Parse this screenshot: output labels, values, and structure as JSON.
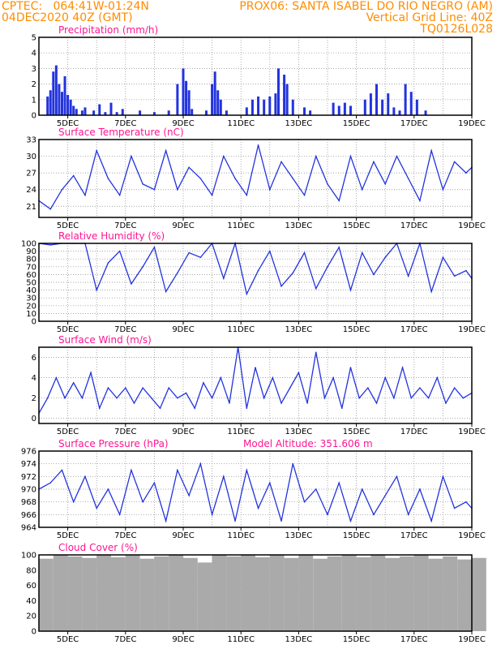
{
  "header": {
    "line1_left": "CPTEC:   064:41W-01:24N",
    "line1_right": "PROX06: SANTA ISABEL DO RIO NEGRO (AM)",
    "line2_left": "04DEC2020 40Z (GMT)",
    "line2_right": "Vertical Grid Line: 40Z",
    "line3_right": "TQ0126L028"
  },
  "model_altitude": "Model Altitude: 351.606 m",
  "x_ticks": [
    "5DEC",
    "7DEC",
    "9DEC",
    "11DEC",
    "13DEC",
    "15DEC",
    "17DEC",
    "19DEC"
  ],
  "colors": {
    "line": "#2233dd",
    "bar": "#2233dd",
    "title": "#ff1493",
    "header": "#ff8c00",
    "cloud": "#aaaaaa",
    "grid": "#888888"
  },
  "chart_data": [
    {
      "type": "bar",
      "title": "Precipitation (mm/h)",
      "ylim": [
        0,
        5
      ],
      "yticks": [
        0,
        1,
        2,
        3,
        4,
        5
      ],
      "x": [
        4.3,
        4.4,
        4.5,
        4.6,
        4.7,
        4.8,
        4.9,
        5.0,
        5.1,
        5.2,
        5.3,
        5.5,
        5.6,
        5.9,
        6.1,
        6.3,
        6.5,
        6.7,
        6.9,
        7.5,
        8.0,
        8.5,
        8.8,
        9.0,
        9.1,
        9.2,
        9.3,
        9.8,
        10.0,
        10.1,
        10.2,
        10.3,
        10.5,
        11.2,
        11.4,
        11.6,
        11.8,
        12.0,
        12.2,
        12.3,
        12.5,
        12.6,
        12.8,
        13.2,
        13.4,
        14.2,
        14.4,
        14.6,
        14.8,
        15.3,
        15.5,
        15.7,
        15.9,
        16.1,
        16.3,
        16.5,
        16.7,
        16.9,
        17.1,
        17.4
      ],
      "values": [
        1.2,
        1.6,
        2.8,
        3.2,
        2.0,
        1.5,
        2.5,
        1.3,
        1.0,
        0.6,
        0.4,
        0.3,
        0.5,
        0.3,
        0.7,
        0.2,
        0.8,
        0.2,
        0.4,
        0.3,
        0.2,
        0.3,
        2.0,
        3.0,
        2.2,
        1.6,
        0.4,
        0.3,
        2.0,
        2.8,
        1.6,
        1.0,
        0.3,
        0.5,
        1.0,
        1.2,
        1.0,
        1.2,
        1.4,
        3.0,
        2.6,
        2.0,
        1.0,
        0.5,
        0.3,
        0.8,
        0.6,
        0.8,
        0.6,
        1.0,
        1.4,
        2.0,
        1.0,
        1.4,
        0.5,
        0.3,
        2.0,
        1.5,
        1.0,
        0.3
      ]
    },
    {
      "type": "line",
      "title": "Surface Temperature (nC)",
      "ylim": [
        19,
        33
      ],
      "yticks": [
        21,
        24,
        27,
        30,
        33
      ],
      "x": [
        4.0,
        4.4,
        4.8,
        5.2,
        5.6,
        6.0,
        6.4,
        6.8,
        7.2,
        7.6,
        8.0,
        8.4,
        8.8,
        9.2,
        9.6,
        10.0,
        10.4,
        10.8,
        11.2,
        11.6,
        12.0,
        12.4,
        12.8,
        13.2,
        13.6,
        14.0,
        14.4,
        14.8,
        15.2,
        15.6,
        16.0,
        16.4,
        16.8,
        17.2,
        17.6,
        18.0,
        18.4,
        18.8,
        19.0
      ],
      "values": [
        22,
        20.5,
        24,
        26.5,
        23,
        31,
        26,
        23,
        30,
        25,
        24,
        31,
        24,
        28,
        26,
        23,
        30,
        26,
        23,
        32,
        24,
        29,
        26,
        23,
        30,
        25,
        22,
        30,
        24,
        29,
        25,
        30,
        26,
        22,
        31,
        24,
        29,
        27,
        28
      ]
    },
    {
      "type": "line",
      "title": "Relative Humidity (%)",
      "ylim": [
        0,
        100
      ],
      "yticks": [
        0,
        10,
        20,
        30,
        40,
        50,
        60,
        70,
        80,
        90,
        100
      ],
      "x": [
        4.0,
        4.4,
        4.8,
        5.2,
        5.6,
        6.0,
        6.4,
        6.8,
        7.2,
        7.6,
        8.0,
        8.4,
        8.8,
        9.2,
        9.6,
        10.0,
        10.4,
        10.8,
        11.2,
        11.6,
        12.0,
        12.4,
        12.8,
        13.2,
        13.6,
        14.0,
        14.4,
        14.8,
        15.2,
        15.6,
        16.0,
        16.4,
        16.8,
        17.2,
        17.6,
        18.0,
        18.4,
        18.8,
        19.0
      ],
      "values": [
        100,
        98,
        100,
        100,
        100,
        40,
        75,
        90,
        48,
        70,
        95,
        38,
        62,
        88,
        82,
        100,
        55,
        100,
        35,
        65,
        90,
        45,
        62,
        88,
        42,
        70,
        95,
        40,
        88,
        60,
        82,
        100,
        58,
        100,
        38,
        82,
        58,
        65,
        55
      ]
    },
    {
      "type": "line",
      "title": "Surface Wind (m/s)",
      "ylim": [
        -0.5,
        7
      ],
      "yticks": [
        0,
        2,
        4,
        6
      ],
      "x": [
        4.0,
        4.3,
        4.6,
        4.9,
        5.2,
        5.5,
        5.8,
        6.1,
        6.4,
        6.7,
        7.0,
        7.3,
        7.6,
        7.9,
        8.2,
        8.5,
        8.8,
        9.1,
        9.4,
        9.7,
        10.0,
        10.3,
        10.6,
        10.9,
        11.2,
        11.5,
        11.8,
        12.1,
        12.4,
        12.7,
        13.0,
        13.3,
        13.6,
        13.9,
        14.2,
        14.5,
        14.8,
        15.1,
        15.4,
        15.7,
        16.0,
        16.3,
        16.6,
        16.9,
        17.2,
        17.5,
        17.8,
        18.1,
        18.4,
        18.7,
        19.0
      ],
      "values": [
        0.5,
        2,
        4,
        2,
        3.5,
        2,
        4.5,
        1,
        3,
        2,
        3,
        1.5,
        3,
        2,
        1,
        3,
        2,
        2.5,
        1,
        3.5,
        2,
        4,
        1.5,
        7,
        1,
        5,
        2,
        4,
        1.5,
        3,
        4.5,
        1.5,
        6.5,
        2,
        4,
        1,
        5,
        2,
        3,
        1.5,
        4,
        2,
        5,
        2,
        3,
        2,
        4,
        1.5,
        3,
        2,
        2.5
      ]
    },
    {
      "type": "line",
      "title": "Surface Pressure (hPa)",
      "ylim": [
        964,
        976
      ],
      "yticks": [
        964,
        966,
        968,
        970,
        972,
        974,
        976
      ],
      "x": [
        4.0,
        4.4,
        4.8,
        5.2,
        5.6,
        6.0,
        6.4,
        6.8,
        7.2,
        7.6,
        8.0,
        8.4,
        8.8,
        9.2,
        9.6,
        10.0,
        10.4,
        10.8,
        11.2,
        11.6,
        12.0,
        12.4,
        12.8,
        13.2,
        13.6,
        14.0,
        14.4,
        14.8,
        15.2,
        15.6,
        16.0,
        16.4,
        16.8,
        17.2,
        17.6,
        18.0,
        18.4,
        18.8,
        19.0
      ],
      "values": [
        970,
        971,
        973,
        968,
        972,
        967,
        970,
        966,
        973,
        968,
        971,
        965,
        973,
        969,
        974,
        966,
        972,
        965,
        973,
        967,
        971,
        965,
        974,
        968,
        970,
        966,
        971,
        965,
        970,
        966,
        969,
        972,
        966,
        970,
        965,
        972,
        967,
        968,
        967
      ]
    },
    {
      "type": "bar",
      "title": "Cloud Cover (%)",
      "ylim": [
        0,
        100
      ],
      "yticks": [
        0,
        20,
        40,
        60,
        80,
        100
      ],
      "x": [
        4.0,
        4.5,
        5.0,
        5.5,
        6.0,
        6.5,
        7.0,
        7.5,
        8.0,
        8.5,
        9.0,
        9.5,
        10.0,
        10.5,
        11.0,
        11.5,
        12.0,
        12.5,
        13.0,
        13.5,
        14.0,
        14.5,
        15.0,
        15.5,
        16.0,
        16.5,
        17.0,
        17.5,
        18.0,
        18.5,
        19.0
      ],
      "values": [
        95,
        100,
        98,
        96,
        100,
        97,
        100,
        95,
        98,
        100,
        96,
        90,
        100,
        98,
        100,
        97,
        100,
        96,
        100,
        95,
        98,
        100,
        97,
        100,
        96,
        98,
        100,
        95,
        98,
        94,
        96
      ]
    }
  ]
}
